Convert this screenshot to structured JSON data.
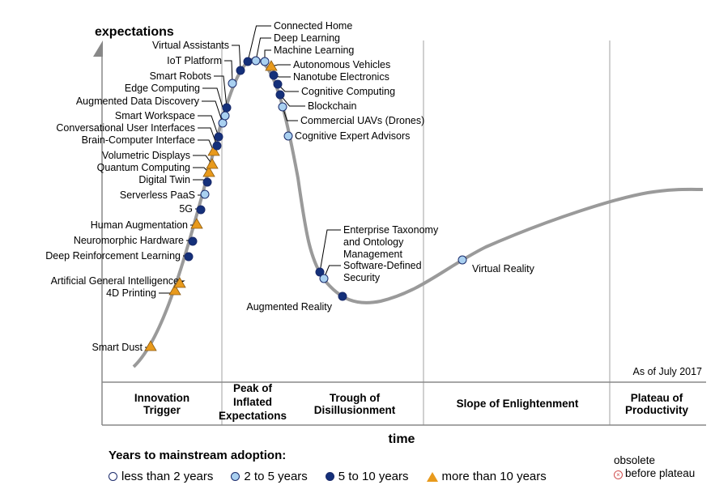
{
  "axes": {
    "y_label": "expectations",
    "x_label": "time",
    "as_of": "As of July 2017"
  },
  "phases": [
    {
      "lines": [
        "Innovation",
        "Trigger"
      ]
    },
    {
      "lines": [
        "Peak of",
        "Inflated",
        "Expectations"
      ]
    },
    {
      "lines": [
        "Trough of",
        "Disillusionment"
      ]
    },
    {
      "lines": [
        "Slope of Enlightenment"
      ]
    },
    {
      "lines": [
        "Plateau of",
        "Productivity"
      ]
    }
  ],
  "colors": {
    "curve": "#9a9a9a",
    "less_than_2": "#ffffff",
    "two_to_5": "#a9d0f0",
    "five_to_10": "#14307a",
    "more_than_10": "#e89a1c"
  },
  "technologies": [
    {
      "name": "Smart Dust",
      "category": "more_than_10"
    },
    {
      "name": "4D Printing",
      "category": "more_than_10"
    },
    {
      "name": "Artificial General Intelligence",
      "category": "more_than_10"
    },
    {
      "name": "Deep Reinforcement Learning",
      "category": "five_to_10"
    },
    {
      "name": "Neuromorphic Hardware",
      "category": "five_to_10"
    },
    {
      "name": "Human Augmentation",
      "category": "more_than_10"
    },
    {
      "name": "5G",
      "category": "five_to_10"
    },
    {
      "name": "Serverless PaaS",
      "category": "two_to_5"
    },
    {
      "name": "Digital Twin",
      "category": "five_to_10"
    },
    {
      "name": "Quantum Computing",
      "category": "more_than_10"
    },
    {
      "name": "Volumetric Displays",
      "category": "more_than_10"
    },
    {
      "name": "Brain-Computer Interface",
      "category": "more_than_10"
    },
    {
      "name": "Conversational User Interfaces",
      "category": "five_to_10"
    },
    {
      "name": "Smart Workspace",
      "category": "five_to_10"
    },
    {
      "name": "Augmented Data Discovery",
      "category": "two_to_5"
    },
    {
      "name": "Edge Computing",
      "category": "two_to_5"
    },
    {
      "name": "Smart Robots",
      "category": "five_to_10"
    },
    {
      "name": "IoT Platform",
      "category": "two_to_5"
    },
    {
      "name": "Virtual Assistants",
      "category": "five_to_10"
    },
    {
      "name": "Connected Home",
      "category": "five_to_10"
    },
    {
      "name": "Deep Learning",
      "category": "two_to_5"
    },
    {
      "name": "Machine Learning",
      "category": "two_to_5"
    },
    {
      "name": "Autonomous Vehicles",
      "category": "more_than_10"
    },
    {
      "name": "Nanotube Electronics",
      "category": "five_to_10"
    },
    {
      "name": "Cognitive Computing",
      "category": "five_to_10"
    },
    {
      "name": "Blockchain",
      "category": "five_to_10"
    },
    {
      "name": "Commercial UAVs (Drones)",
      "category": "two_to_5"
    },
    {
      "name": "Cognitive Expert Advisors",
      "category": "two_to_5"
    },
    {
      "name": "Enterprise Taxonomy and Ontology Management",
      "category": "five_to_10"
    },
    {
      "name": "Software-Defined Security",
      "category": "two_to_5"
    },
    {
      "name": "Augmented Reality",
      "category": "five_to_10"
    },
    {
      "name": "Virtual Reality",
      "category": "two_to_5"
    }
  ],
  "legend": {
    "title": "Years to mainstream adoption:",
    "items": [
      {
        "label": "less than 2 years",
        "category": "less_than_2"
      },
      {
        "label": "2 to 5 years",
        "category": "two_to_5"
      },
      {
        "label": "5 to 10 years",
        "category": "five_to_10"
      },
      {
        "label": "more than 10 years",
        "category": "more_than_10"
      }
    ],
    "obsolete_line1": "obsolete",
    "obsolete_line2": "before plateau"
  }
}
